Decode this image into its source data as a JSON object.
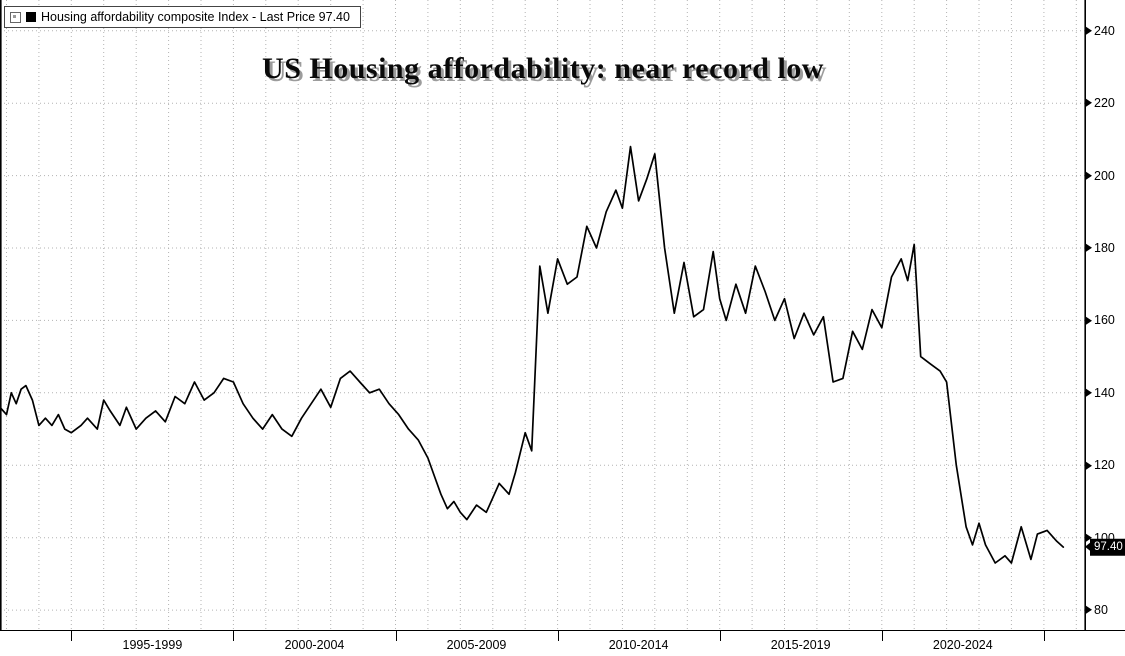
{
  "title": "US Housing affordability: near record low",
  "legend": {
    "label": "Housing affordability composite Index - Last Price 97.40"
  },
  "last_price_label": "97.40",
  "chart_data": {
    "type": "line",
    "title": "US Housing affordability: near record low",
    "series_name": "Housing affordability composite Index",
    "last_price": 97.4,
    "grid": "dotted",
    "legend_position": "top-left",
    "xlim": [
      1992.8,
      2026.3
    ],
    "ylim": [
      74.5,
      248.5
    ],
    "yticks": [
      80,
      100,
      120,
      140,
      160,
      180,
      200,
      220,
      240
    ],
    "x_boundary_ticks": [
      1995,
      2000,
      2005,
      2010,
      2015,
      2020,
      2025
    ],
    "x_tick_labels": [
      {
        "label": "1995-1999",
        "center": 1997.5
      },
      {
        "label": "2000-2004",
        "center": 2002.5
      },
      {
        "label": "2005-2009",
        "center": 2007.5
      },
      {
        "label": "2010-2014",
        "center": 2012.5
      },
      {
        "label": "2015-2019",
        "center": 2017.5
      },
      {
        "label": "2020-2024",
        "center": 2022.5
      }
    ],
    "series": [
      {
        "name": "Housing affordability composite Index",
        "color": "#000000",
        "points": [
          [
            1992.8,
            136
          ],
          [
            1993.0,
            134
          ],
          [
            1993.15,
            140
          ],
          [
            1993.3,
            137
          ],
          [
            1993.45,
            141
          ],
          [
            1993.6,
            142
          ],
          [
            1993.8,
            138
          ],
          [
            1994.0,
            131
          ],
          [
            1994.2,
            133
          ],
          [
            1994.4,
            131
          ],
          [
            1994.6,
            134
          ],
          [
            1994.8,
            130
          ],
          [
            1995.0,
            129
          ],
          [
            1995.3,
            131
          ],
          [
            1995.5,
            133
          ],
          [
            1995.8,
            130
          ],
          [
            1996.0,
            138
          ],
          [
            1996.2,
            135
          ],
          [
            1996.5,
            131
          ],
          [
            1996.7,
            136
          ],
          [
            1997.0,
            130
          ],
          [
            1997.3,
            133
          ],
          [
            1997.6,
            135
          ],
          [
            1997.9,
            132
          ],
          [
            1998.2,
            139
          ],
          [
            1998.5,
            137
          ],
          [
            1998.8,
            143
          ],
          [
            1999.1,
            138
          ],
          [
            1999.4,
            140
          ],
          [
            1999.7,
            144
          ],
          [
            2000.0,
            143
          ],
          [
            2000.3,
            137
          ],
          [
            2000.6,
            133
          ],
          [
            2000.9,
            130
          ],
          [
            2001.2,
            134
          ],
          [
            2001.5,
            130
          ],
          [
            2001.8,
            128
          ],
          [
            2002.1,
            133
          ],
          [
            2002.4,
            137
          ],
          [
            2002.7,
            141
          ],
          [
            2003.0,
            136
          ],
          [
            2003.3,
            144
          ],
          [
            2003.6,
            146
          ],
          [
            2003.9,
            143
          ],
          [
            2004.2,
            140
          ],
          [
            2004.5,
            141
          ],
          [
            2004.8,
            137
          ],
          [
            2005.1,
            134
          ],
          [
            2005.4,
            130
          ],
          [
            2005.7,
            127
          ],
          [
            2006.0,
            122
          ],
          [
            2006.2,
            117
          ],
          [
            2006.4,
            112
          ],
          [
            2006.6,
            108
          ],
          [
            2006.8,
            110
          ],
          [
            2007.0,
            107
          ],
          [
            2007.2,
            105
          ],
          [
            2007.5,
            109
          ],
          [
            2007.8,
            107
          ],
          [
            2008.0,
            111
          ],
          [
            2008.2,
            115
          ],
          [
            2008.5,
            112
          ],
          [
            2008.7,
            118
          ],
          [
            2009.0,
            129
          ],
          [
            2009.2,
            124
          ],
          [
            2009.45,
            175
          ],
          [
            2009.7,
            162
          ],
          [
            2010.0,
            177
          ],
          [
            2010.3,
            170
          ],
          [
            2010.6,
            172
          ],
          [
            2010.9,
            186
          ],
          [
            2011.2,
            180
          ],
          [
            2011.5,
            190
          ],
          [
            2011.8,
            196
          ],
          [
            2012.0,
            191
          ],
          [
            2012.25,
            208
          ],
          [
            2012.5,
            193
          ],
          [
            2012.75,
            199
          ],
          [
            2013.0,
            206
          ],
          [
            2013.3,
            180
          ],
          [
            2013.6,
            162
          ],
          [
            2013.9,
            176
          ],
          [
            2014.2,
            161
          ],
          [
            2014.5,
            163
          ],
          [
            2014.8,
            179
          ],
          [
            2015.0,
            166
          ],
          [
            2015.2,
            160
          ],
          [
            2015.5,
            170
          ],
          [
            2015.8,
            162
          ],
          [
            2016.1,
            175
          ],
          [
            2016.4,
            168
          ],
          [
            2016.7,
            160
          ],
          [
            2017.0,
            166
          ],
          [
            2017.3,
            155
          ],
          [
            2017.6,
            162
          ],
          [
            2017.9,
            156
          ],
          [
            2018.2,
            161
          ],
          [
            2018.5,
            143
          ],
          [
            2018.8,
            144
          ],
          [
            2019.1,
            157
          ],
          [
            2019.4,
            152
          ],
          [
            2019.7,
            163
          ],
          [
            2020.0,
            158
          ],
          [
            2020.3,
            172
          ],
          [
            2020.6,
            177
          ],
          [
            2020.8,
            171
          ],
          [
            2021.0,
            181
          ],
          [
            2021.2,
            150
          ],
          [
            2021.5,
            148
          ],
          [
            2021.8,
            146
          ],
          [
            2022.0,
            143
          ],
          [
            2022.3,
            120
          ],
          [
            2022.6,
            103
          ],
          [
            2022.8,
            98
          ],
          [
            2023.0,
            104
          ],
          [
            2023.2,
            98
          ],
          [
            2023.5,
            93
          ],
          [
            2023.8,
            95
          ],
          [
            2024.0,
            93
          ],
          [
            2024.3,
            103
          ],
          [
            2024.6,
            94
          ],
          [
            2024.8,
            101
          ],
          [
            2025.1,
            102
          ],
          [
            2025.4,
            99
          ],
          [
            2025.6,
            97.4
          ]
        ]
      }
    ]
  }
}
